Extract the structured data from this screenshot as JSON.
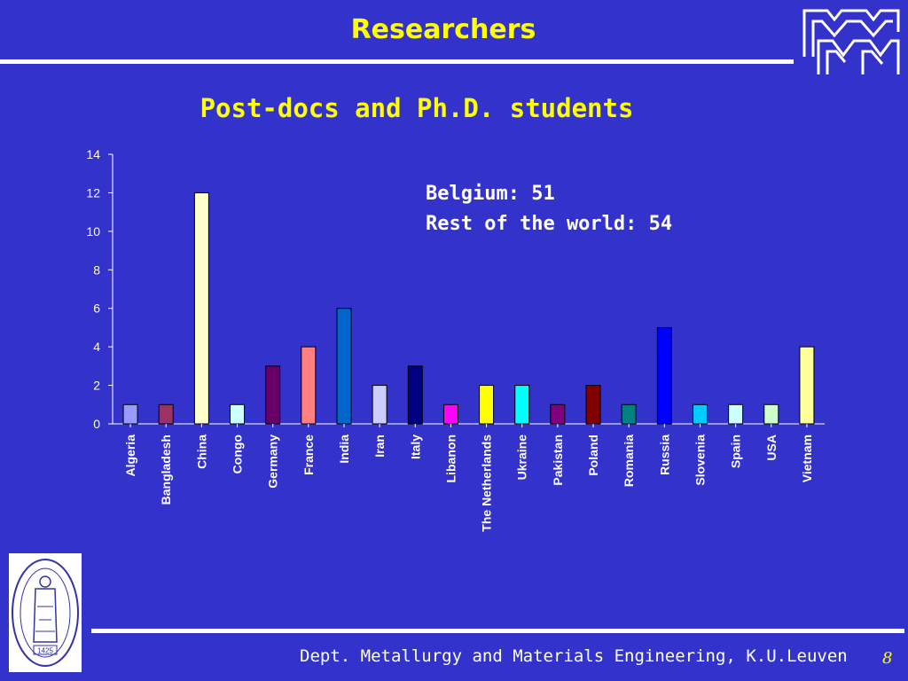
{
  "slide": {
    "title": "Researchers",
    "footer": "Dept. Metallurgy and Materials Engineering, K.U.Leuven",
    "page_number": "8",
    "seal_year": "1425",
    "seal_inscription": "SIGILLUM UNIVERSITATIS STUDII LOVANIENSIS"
  },
  "colors": {
    "background": "#3333cc",
    "title": "#ffff00",
    "text": "#ffffff"
  },
  "chart_data": {
    "type": "bar",
    "title": "Post-docs and Ph.D. students",
    "xlabel": "",
    "ylabel": "",
    "ylim": [
      0,
      14
    ],
    "yticks": [
      0,
      2,
      4,
      6,
      8,
      10,
      12,
      14
    ],
    "grid": false,
    "legend": "none",
    "categories": [
      "Algeria",
      "Bangladesh",
      "China",
      "Congo",
      "Germany",
      "France",
      "India",
      "Iran",
      "Italy",
      "Libanon",
      "The Netherlands",
      "Ukraine",
      "Pakistan",
      "Poland",
      "Romania",
      "Russia",
      "Slovenia",
      "Spain",
      "USA",
      "Vietnam"
    ],
    "values": [
      1,
      1,
      12,
      1,
      3,
      4,
      6,
      2,
      3,
      1,
      2,
      2,
      1,
      2,
      1,
      5,
      1,
      1,
      1,
      4
    ],
    "colors": [
      "#9999ff",
      "#993366",
      "#ffffcc",
      "#ccffff",
      "#660066",
      "#ff8080",
      "#0066cc",
      "#ccccff",
      "#000080",
      "#ff00ff",
      "#ffff00",
      "#00ffff",
      "#800080",
      "#800000",
      "#008080",
      "#0000ff",
      "#00ccff",
      "#ccffff",
      "#ccffcc",
      "#ffff99"
    ],
    "annotations": [
      "Belgium: 51",
      "Rest of the world: 54"
    ]
  }
}
